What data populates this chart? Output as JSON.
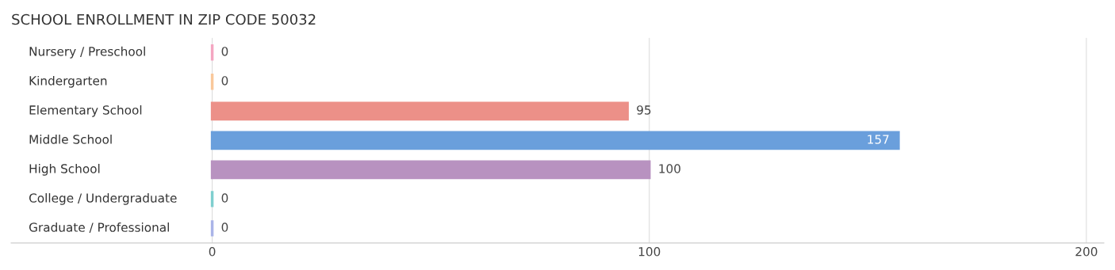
{
  "chart_data": {
    "type": "bar",
    "orientation": "horizontal",
    "title": "SCHOOL ENROLLMENT IN ZIP CODE 50032",
    "categories": [
      "Nursery / Preschool",
      "Kindergarten",
      "Elementary School",
      "Middle School",
      "High School",
      "College / Undergraduate",
      "Graduate / Professional"
    ],
    "values": [
      0,
      0,
      95,
      157,
      100,
      0,
      0
    ],
    "colors": [
      "#f4a6c1",
      "#f9c89b",
      "#ec9088",
      "#6a9fdc",
      "#b892c0",
      "#7fcfcf",
      "#aab4e8"
    ],
    "xlim": [
      -46,
      204
    ],
    "xticks": [
      0,
      100,
      200
    ],
    "grid": "x",
    "data_labels": true,
    "tick_labels": "x"
  }
}
